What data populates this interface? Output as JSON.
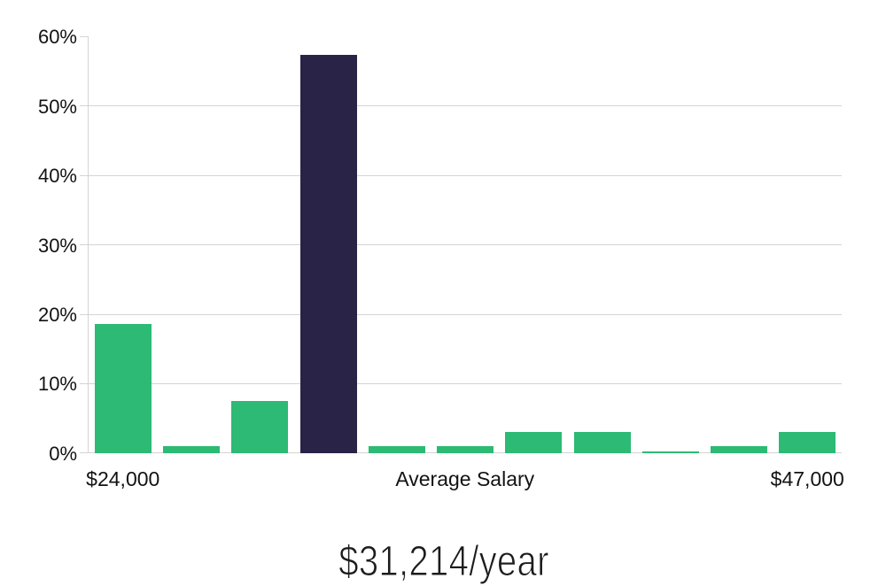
{
  "chart_data": {
    "type": "bar",
    "title": "$31,214/year",
    "values": [
      18.6,
      1,
      7.5,
      57.4,
      1,
      1,
      3,
      3,
      0.2,
      1,
      3
    ],
    "highlight_index": 3,
    "y_ticks": [
      {
        "label": "0%",
        "value": 0
      },
      {
        "label": "10%",
        "value": 10
      },
      {
        "label": "20%",
        "value": 20
      },
      {
        "label": "30%",
        "value": 30
      },
      {
        "label": "40%",
        "value": 40
      },
      {
        "label": "50%",
        "value": 50
      },
      {
        "label": "60%",
        "value": 60
      }
    ],
    "ylim": [
      0,
      60
    ],
    "x_axis_labels": [
      {
        "text": "$24,000",
        "anchor": "first-bar"
      },
      {
        "text": "Average Salary",
        "anchor": "center"
      },
      {
        "text": "$47,000",
        "anchor": "last-bar"
      }
    ],
    "legend": "none",
    "grid": "horizontal",
    "colors": {
      "bar": "#2cba74",
      "highlight_bar": "#282347",
      "grid": "#d4d4d4",
      "axis_text": "#121212",
      "title_text": "#1c1c1c"
    }
  }
}
